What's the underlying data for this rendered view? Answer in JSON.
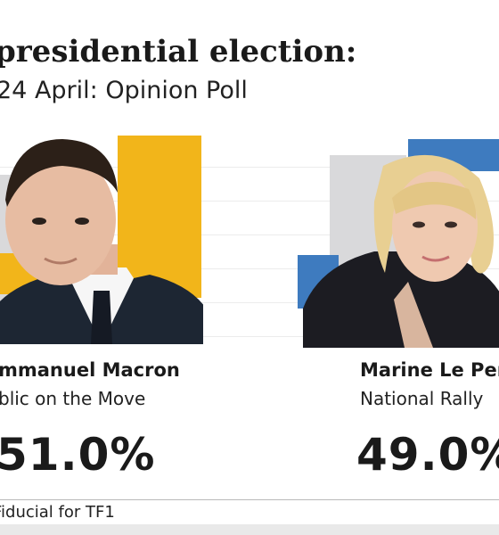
{
  "header": {
    "title": "presidential election:",
    "subtitle": "24 April: Opinion Poll"
  },
  "chart_data": {
    "type": "table",
    "title": "presidential election:",
    "subtitle": "24 April: Opinion Poll",
    "candidates": [
      {
        "name": "mmanuel Macron",
        "party": "blic on the Move",
        "value": 51.0,
        "value_label": "51.0%",
        "color": "#F2B51A"
      },
      {
        "name": "Marine Le Per",
        "party": "National Rally",
        "value": 49.0,
        "value_label": "49.0%",
        "color": "#3E7BBF"
      }
    ]
  },
  "footer": {
    "source": "Fiducial for TF1"
  },
  "colors": {
    "macron_accent": "#F2B51A",
    "lepen_accent": "#3E7BBF",
    "grey_block": "#D9D9DB"
  }
}
